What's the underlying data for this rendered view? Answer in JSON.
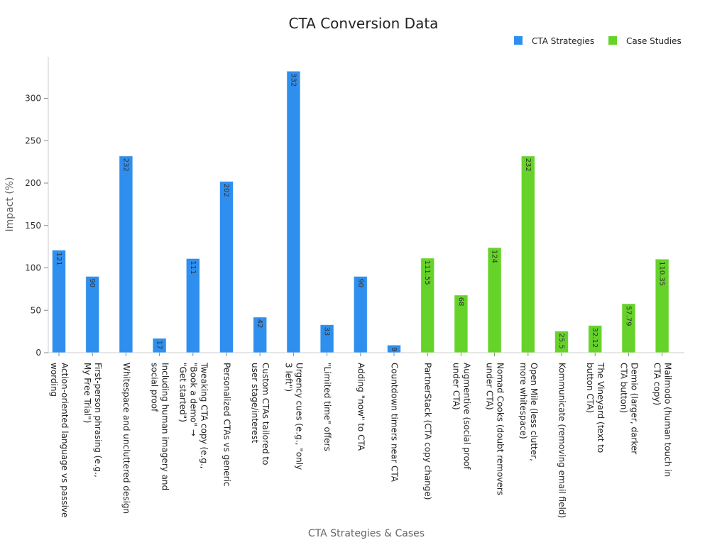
{
  "chart_data": {
    "type": "bar",
    "title": "CTA Conversion Data",
    "xlabel": "CTA Strategies & Cases",
    "ylabel": "Impact (%)",
    "ylim": [
      0,
      350
    ],
    "yticks": [
      0,
      50,
      100,
      150,
      200,
      250,
      300
    ],
    "grid": false,
    "legend_position": "top-right",
    "series": [
      {
        "name": "CTA Strategies",
        "color": "#2f8fee"
      },
      {
        "name": "Case Studies",
        "color": "#66d32a"
      }
    ],
    "categories": [
      {
        "lines": [
          "Action-oriented language vs passive",
          "wording"
        ],
        "value": 121,
        "value_label": "121",
        "series": 0
      },
      {
        "lines": [
          "First-person phrasing (e.g.,",
          "My Free Trial\")"
        ],
        "value": 90,
        "value_label": "90",
        "series": 0
      },
      {
        "lines": [
          "Whitespace and uncluttered design"
        ],
        "value": 232,
        "value_label": "232",
        "series": 0
      },
      {
        "lines": [
          "Including human imagery and",
          "social proof"
        ],
        "value": 17,
        "value_label": "17",
        "series": 0
      },
      {
        "lines": [
          "Tweaking CTA copy (e.g.,",
          "\"Book a demo\" →",
          "\"Get started\")"
        ],
        "value": 111,
        "value_label": "111",
        "series": 0
      },
      {
        "lines": [
          "Personalized CTAs vs generic"
        ],
        "value": 202,
        "value_label": "202",
        "series": 0
      },
      {
        "lines": [
          "Custom CTAs tailored to",
          "user stage/interest"
        ],
        "value": 42,
        "value_label": "42",
        "series": 0
      },
      {
        "lines": [
          "Urgency cues (e.g., \"only",
          "3 left\")"
        ],
        "value": 332,
        "value_label": "332",
        "series": 0
      },
      {
        "lines": [
          "\"Limited time\" offers"
        ],
        "value": 33,
        "value_label": "33",
        "series": 0
      },
      {
        "lines": [
          "Adding \"now\" to CTA"
        ],
        "value": 90,
        "value_label": "90",
        "series": 0
      },
      {
        "lines": [
          "Countdown timers near CTA"
        ],
        "value": 9,
        "value_label": "9",
        "series": 0
      },
      {
        "lines": [
          "PartnerStack (CTA copy change)"
        ],
        "value": 111.55,
        "value_label": "111.55",
        "series": 1
      },
      {
        "lines": [
          "Augmentive (social proof",
          "under CTA)"
        ],
        "value": 68,
        "value_label": "68",
        "series": 1
      },
      {
        "lines": [
          "Nomad Cooks (doubt removers",
          "under CTA)"
        ],
        "value": 124,
        "value_label": "124",
        "series": 1
      },
      {
        "lines": [
          "Open Mile (less clutter,",
          "more whitespace)"
        ],
        "value": 232,
        "value_label": "232",
        "series": 1
      },
      {
        "lines": [
          "Kommunicate (removing email field)"
        ],
        "value": 25.5,
        "value_label": "25.5",
        "series": 1
      },
      {
        "lines": [
          "The Vineyard (text to",
          "button CTA)"
        ],
        "value": 32.12,
        "value_label": "32.12",
        "series": 1
      },
      {
        "lines": [
          "Demio (larger, darker",
          "CTA button)"
        ],
        "value": 57.79,
        "value_label": "57.79",
        "series": 1
      },
      {
        "lines": [
          "Mailmodo (human touch in",
          "CTA copy)"
        ],
        "value": 110.35,
        "value_label": "110.35",
        "series": 1
      }
    ]
  }
}
